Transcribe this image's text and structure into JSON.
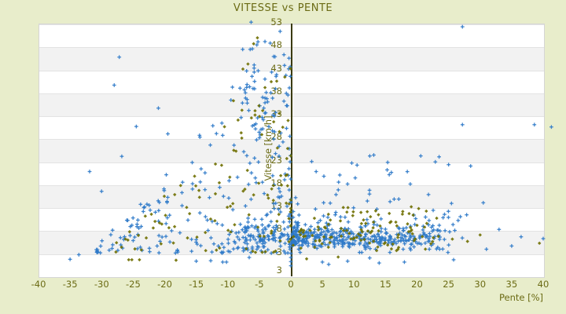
{
  "title": "VITESSE vs PENTE",
  "colors": {
    "page_bg": "#e8edcb",
    "title_text": "#6b6b14",
    "tick_text": "#6b6b14",
    "axis_line": "#3b3b0a",
    "plot_border": "#d5d5d5",
    "grid_line": "#e3e3e3",
    "stripe_white": "#ffffff",
    "stripe_gray": "#f2f2f2",
    "series_blue": "#2f7ac9",
    "series_olive": "#6f6f00"
  },
  "chart_data": {
    "type": "scatter",
    "title": "VITESSE vs PENTE",
    "xlabel": "Pente [%]",
    "ylabel": "Vitesse [km/h]",
    "xlim": [
      -40,
      40
    ],
    "ylim": [
      -2,
      53
    ],
    "x_ticks": [
      -40,
      -35,
      -30,
      -25,
      -20,
      -15,
      -10,
      -5,
      0,
      5,
      10,
      15,
      20,
      25,
      30,
      35,
      40
    ],
    "y_ticks": [
      53,
      48,
      43,
      38,
      33,
      28,
      23,
      18,
      13,
      8,
      3
    ],
    "y_axis_min_label": "3",
    "grid": "horizontal-bands-alternating",
    "legend": "none",
    "y_axis_at_x": 0,
    "seed": 123456,
    "series": [
      {
        "name": "vitesse-blue",
        "marker": "plus",
        "color": "#2f7ac9",
        "clusters": [
          {
            "n": 240,
            "x": {
              "kind": "pow",
              "from": 0,
              "to": -31,
              "exp": 2.1
            },
            "y": {
              "kind": "triangle",
              "base": 3,
              "peak": 50,
              "span": 32,
              "exp": 1.3
            }
          },
          {
            "n": 100,
            "x": {
              "kind": "gauss",
              "mean": -4.5,
              "sd": 2.6,
              "min": -13,
              "max": -0.2
            },
            "y": {
              "kind": "gauss",
              "mean": 6.8,
              "sd": 1.8,
              "min": 3.2,
              "max": 12
            }
          },
          {
            "n": 45,
            "x": {
              "kind": "gauss",
              "mean": -5.2,
              "sd": 1.7,
              "min": -9.5,
              "max": -1
            },
            "y": {
              "kind": "uniform",
              "min": 27,
              "max": 49.5
            }
          },
          {
            "n": 340,
            "x": {
              "kind": "pow",
              "from": 0.2,
              "to": 24.5,
              "exp": 1.8
            },
            "y": {
              "kind": "gauss",
              "mean": 6.4,
              "sd": 1.25,
              "min": 3.9,
              "max": 9.8
            }
          },
          {
            "n": 95,
            "x": {
              "kind": "uniform",
              "min": 0.3,
              "max": 28
            },
            "y": {
              "kind": "gauss",
              "mean": 8.5,
              "sd": 3.2,
              "min": 3.2,
              "max": 17.5
            }
          },
          {
            "n": 26,
            "x": {
              "kind": "uniform",
              "min": 2,
              "max": 22
            },
            "y": {
              "kind": "uniform",
              "min": 12,
              "max": 24.5
            }
          }
        ],
        "points": [
          [
            -35,
            1.7
          ],
          [
            -33.6,
            2.7
          ],
          [
            -31.9,
            20.8
          ],
          [
            -30,
            16.5
          ],
          [
            -28,
            39.6
          ],
          [
            -27.2,
            45.7
          ],
          [
            -26.8,
            24.1
          ],
          [
            -26,
            10.2
          ],
          [
            -25.2,
            9.1
          ],
          [
            -24.5,
            30.6
          ],
          [
            -23.2,
            13.1
          ],
          [
            -22.3,
            12.4
          ],
          [
            -21,
            34.6
          ],
          [
            -19.5,
            29
          ],
          [
            -18,
            3.6
          ],
          [
            -15,
            1.3
          ],
          [
            -12.7,
            1.4
          ],
          [
            -10.8,
            1.1
          ],
          [
            -10.2,
            1.1
          ],
          [
            -6.6,
            2.1
          ],
          [
            -6.3,
            53.3
          ],
          [
            -1.7,
            51.3
          ],
          [
            0,
            0.3
          ],
          [
            0,
            1.2
          ],
          [
            0,
            2.1
          ],
          [
            0,
            3
          ],
          [
            5,
            1.1
          ],
          [
            6,
            0.6
          ],
          [
            9,
            1.3
          ],
          [
            12.5,
            2
          ],
          [
            14,
            0.9
          ],
          [
            18,
            1.1
          ],
          [
            20.6,
            24.2
          ],
          [
            22.9,
            22.9
          ],
          [
            23.5,
            24
          ],
          [
            25,
            22.3
          ],
          [
            25.8,
            1.6
          ],
          [
            27.2,
            52.3
          ],
          [
            27.2,
            31
          ],
          [
            28.5,
            22
          ],
          [
            30.5,
            14
          ],
          [
            31,
            3.9
          ],
          [
            33,
            8.2
          ],
          [
            35,
            4.6
          ],
          [
            36.5,
            6.6
          ],
          [
            38.6,
            31
          ],
          [
            40,
            6.2
          ],
          [
            41.3,
            30.5
          ]
        ]
      },
      {
        "name": "vitesse-olive",
        "marker": "diamond",
        "color": "#6f6f00",
        "clusters": [
          {
            "n": 115,
            "x": {
              "kind": "pow",
              "from": 0,
              "to": -28,
              "exp": 1.8
            },
            "y": {
              "kind": "triangle",
              "base": 3.2,
              "peak": 47,
              "span": 29,
              "exp": 1.2
            }
          },
          {
            "n": 85,
            "x": {
              "kind": "pow",
              "from": 0.3,
              "to": 23.5,
              "exp": 1.5
            },
            "y": {
              "kind": "gauss",
              "mean": 7,
              "sd": 1.9,
              "min": 3.6,
              "max": 11.5
            }
          },
          {
            "n": 22,
            "x": {
              "kind": "uniform",
              "min": 5,
              "max": 23
            },
            "y": {
              "kind": "uniform",
              "min": 8,
              "max": 13.2
            }
          }
        ],
        "points": [
          [
            -25.7,
            1.6
          ],
          [
            -25.2,
            1.6
          ],
          [
            -24,
            1.6
          ],
          [
            -18.2,
            1.5
          ],
          [
            -13.5,
            3.6
          ],
          [
            -11.8,
            3.7
          ],
          [
            -9.1,
            36.2
          ],
          [
            -7.6,
            43.1
          ],
          [
            -6.8,
            44.2
          ],
          [
            -5.9,
            48.6
          ],
          [
            -5.3,
            49.9
          ],
          [
            2.5,
            1.8
          ],
          [
            7.5,
            2.2
          ],
          [
            18.5,
            9.4
          ],
          [
            20,
            9.1
          ],
          [
            21.2,
            8.7
          ],
          [
            22.2,
            5.1
          ],
          [
            25.6,
            6.1
          ],
          [
            28,
            5.6
          ],
          [
            30,
            7
          ],
          [
            39.4,
            5.2
          ]
        ]
      }
    ]
  }
}
